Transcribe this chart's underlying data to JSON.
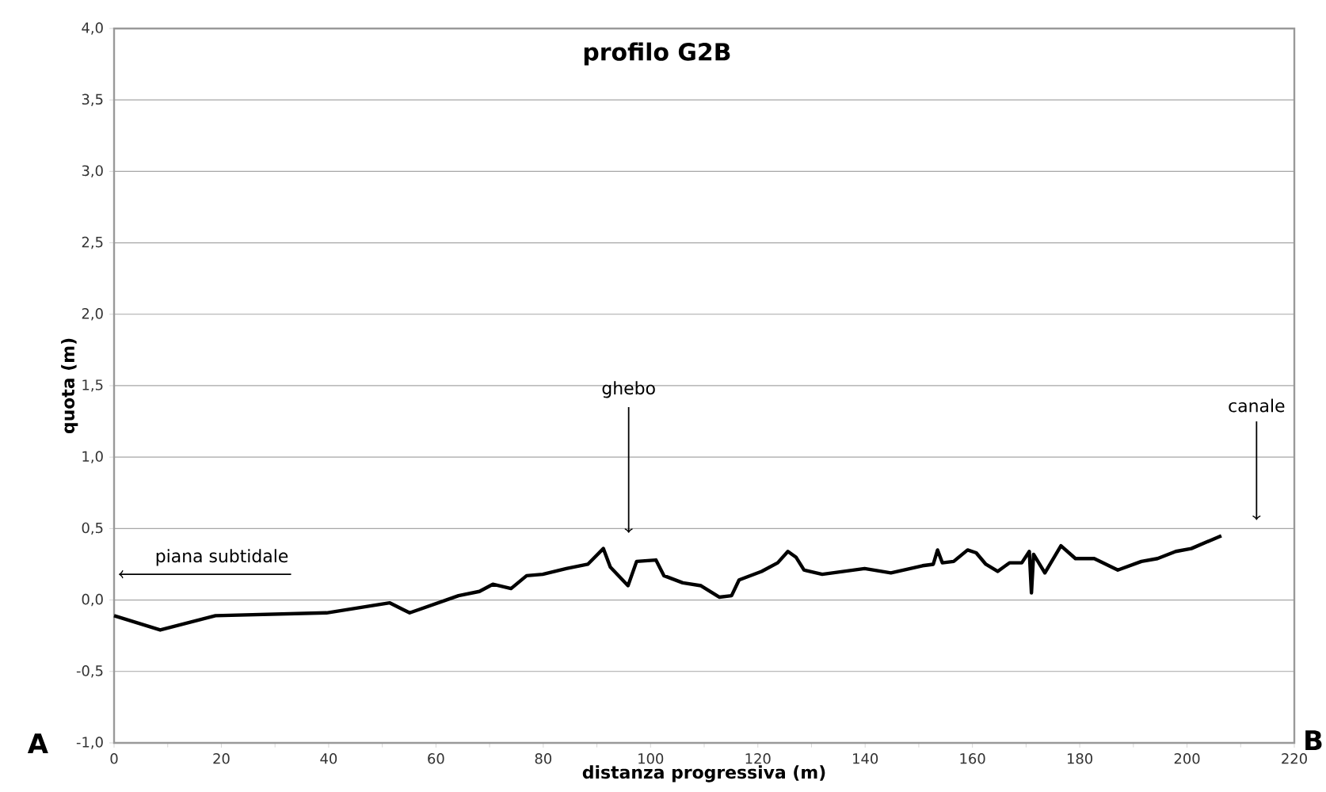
{
  "chart_data": {
    "type": "line",
    "title": "profilo G2B",
    "xlabel": "distanza progressiva (m)",
    "ylabel": "quota (m)",
    "x": [
      0,
      8.6,
      18.9,
      39.6,
      51.4,
      55.1,
      64.2,
      68.1,
      70.6,
      74.0,
      76.9,
      79.9,
      84.3,
      88.3,
      91.2,
      92.5,
      95.8,
      97.4,
      101.0,
      102.5,
      106.0,
      109.4,
      112.8,
      115.1,
      116.5,
      120.7,
      123.7,
      125.6,
      127.1,
      128.6,
      132.0,
      139.9,
      144.8,
      150.7,
      152.7,
      153.5,
      154.4,
      156.5,
      159.1,
      160.7,
      162.5,
      164.7,
      166.9,
      169.2,
      170.6,
      171.0,
      171.4,
      173.5,
      176.5,
      179.2,
      182.7,
      187.1,
      191.5,
      194.5,
      197.9,
      200.8,
      206.4
    ],
    "series": [
      {
        "color": "#000000",
        "values": [
          -0.11,
          -0.21,
          -0.11,
          -0.09,
          -0.02,
          -0.09,
          0.03,
          0.06,
          0.11,
          0.08,
          0.17,
          0.18,
          0.22,
          0.25,
          0.36,
          0.23,
          0.1,
          0.27,
          0.28,
          0.17,
          0.12,
          0.1,
          0.02,
          0.03,
          0.14,
          0.2,
          0.26,
          0.34,
          0.3,
          0.21,
          0.18,
          0.22,
          0.19,
          0.24,
          0.25,
          0.35,
          0.26,
          0.27,
          0.35,
          0.33,
          0.25,
          0.2,
          0.26,
          0.26,
          0.34,
          0.05,
          0.32,
          0.19,
          0.38,
          0.29,
          0.29,
          0.21,
          0.27,
          0.29,
          0.34,
          0.36,
          0.45
        ]
      }
    ],
    "xlim": [
      0,
      220
    ],
    "xticks": [
      0,
      20,
      40,
      60,
      80,
      100,
      120,
      140,
      160,
      180,
      200,
      220
    ],
    "ylim": [
      -1,
      4
    ],
    "yticks": [
      {
        "value": -1,
        "label": "-1,0"
      },
      {
        "value": -0.5,
        "label": "-0,5"
      },
      {
        "value": 0,
        "label": "0,0"
      },
      {
        "value": 0.5,
        "label": "0,5"
      },
      {
        "value": 1,
        "label": "1,0"
      },
      {
        "value": 1.5,
        "label": "1,5"
      },
      {
        "value": 2,
        "label": "2,0"
      },
      {
        "value": 2.5,
        "label": "2,5"
      },
      {
        "value": 3,
        "label": "3,0"
      },
      {
        "value": 3.5,
        "label": "3,5"
      },
      {
        "value": 4,
        "label": "4,0"
      }
    ],
    "grid": "y",
    "marker": "none",
    "line_style": "solid",
    "annotations": [
      "ghebo",
      "canale",
      "piana subtidale",
      "A",
      "B"
    ]
  }
}
